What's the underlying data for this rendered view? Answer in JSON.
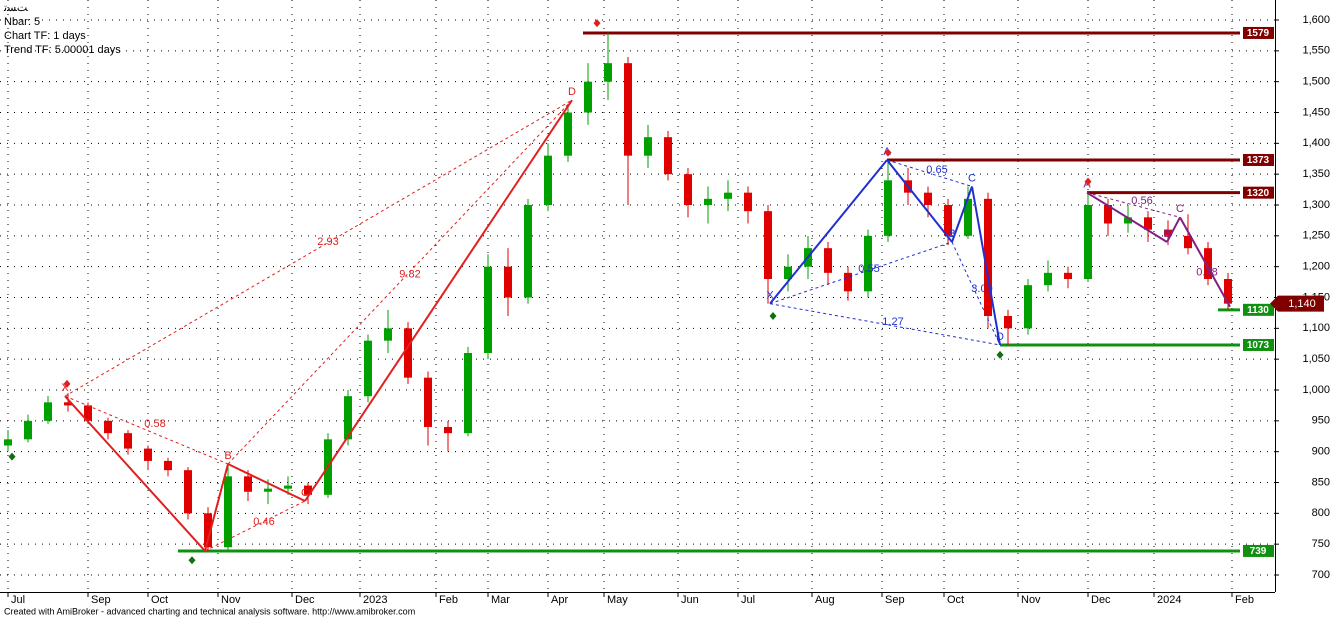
{
  "chart_data": {
    "type": "candlestick",
    "header": [
      "ﺖﺴﺗ",
      "Nbar: 5",
      "Chart TF: 1 days",
      "Trend TF: 5.00001 days"
    ],
    "footer": "Created with AmiBroker - advanced charting and technical analysis software. http://www.amibroker.com",
    "up_color": "#00a000",
    "down_color": "#e00000",
    "candles": [
      [
        910,
        935,
        900,
        920
      ],
      [
        920,
        960,
        915,
        950
      ],
      [
        950,
        990,
        945,
        980
      ],
      [
        980,
        995,
        965,
        975
      ],
      [
        975,
        980,
        945,
        950
      ],
      [
        950,
        955,
        920,
        930
      ],
      [
        930,
        935,
        895,
        905
      ],
      [
        905,
        910,
        870,
        885
      ],
      [
        885,
        890,
        860,
        870
      ],
      [
        870,
        875,
        790,
        800
      ],
      [
        800,
        810,
        739,
        745
      ],
      [
        745,
        880,
        740,
        860
      ],
      [
        860,
        870,
        820,
        835
      ],
      [
        835,
        855,
        815,
        840
      ],
      [
        840,
        860,
        830,
        845
      ],
      [
        845,
        850,
        815,
        830
      ],
      [
        830,
        930,
        825,
        920
      ],
      [
        920,
        1000,
        910,
        990
      ],
      [
        990,
        1090,
        980,
        1080
      ],
      [
        1080,
        1130,
        1060,
        1100
      ],
      [
        1100,
        1110,
        1010,
        1020
      ],
      [
        1020,
        1030,
        910,
        940
      ],
      [
        940,
        950,
        900,
        930
      ],
      [
        930,
        1070,
        925,
        1060
      ],
      [
        1060,
        1220,
        1050,
        1200
      ],
      [
        1200,
        1230,
        1120,
        1150
      ],
      [
        1150,
        1310,
        1140,
        1300
      ],
      [
        1300,
        1400,
        1290,
        1380
      ],
      [
        1380,
        1460,
        1370,
        1450
      ],
      [
        1450,
        1530,
        1430,
        1500
      ],
      [
        1500,
        1579,
        1470,
        1530
      ],
      [
        1530,
        1540,
        1300,
        1380
      ],
      [
        1380,
        1430,
        1360,
        1410
      ],
      [
        1410,
        1420,
        1340,
        1350
      ],
      [
        1350,
        1360,
        1280,
        1300
      ],
      [
        1300,
        1330,
        1270,
        1310
      ],
      [
        1310,
        1340,
        1290,
        1320
      ],
      [
        1320,
        1330,
        1270,
        1290
      ],
      [
        1290,
        1300,
        1140,
        1180
      ],
      [
        1180,
        1220,
        1160,
        1200
      ],
      [
        1200,
        1250,
        1180,
        1230
      ],
      [
        1230,
        1240,
        1170,
        1190
      ],
      [
        1190,
        1200,
        1145,
        1160
      ],
      [
        1160,
        1260,
        1150,
        1250
      ],
      [
        1250,
        1373,
        1240,
        1340
      ],
      [
        1340,
        1360,
        1300,
        1320
      ],
      [
        1320,
        1330,
        1280,
        1300
      ],
      [
        1300,
        1310,
        1235,
        1250
      ],
      [
        1250,
        1330,
        1245,
        1310
      ],
      [
        1310,
        1320,
        1100,
        1120
      ],
      [
        1120,
        1130,
        1073,
        1100
      ],
      [
        1100,
        1180,
        1090,
        1170
      ],
      [
        1170,
        1210,
        1160,
        1190
      ],
      [
        1190,
        1200,
        1165,
        1180
      ],
      [
        1180,
        1320,
        1175,
        1300
      ],
      [
        1300,
        1310,
        1250,
        1270
      ],
      [
        1270,
        1300,
        1255,
        1280
      ],
      [
        1280,
        1290,
        1240,
        1260
      ],
      [
        1260,
        1275,
        1235,
        1250
      ],
      [
        1250,
        1285,
        1220,
        1230
      ],
      [
        1230,
        1240,
        1170,
        1180
      ],
      [
        1180,
        1190,
        1130,
        1140
      ]
    ],
    "xlim": [
      -0.4,
      63.35
    ],
    "xticks": [
      {
        "value": 0,
        "label": "Jul"
      },
      {
        "value": 4,
        "label": "Sep"
      },
      {
        "value": 7,
        "label": "Oct"
      },
      {
        "value": 10.5,
        "label": "Nov"
      },
      {
        "value": 14.2,
        "label": "Dec"
      },
      {
        "value": 17.6,
        "label": "2023"
      },
      {
        "value": 21.4,
        "label": "Feb"
      },
      {
        "value": 24,
        "label": "Mar"
      },
      {
        "value": 27,
        "label": "Apr"
      },
      {
        "value": 29.8,
        "label": "May"
      },
      {
        "value": 33.5,
        "label": "Jun"
      },
      {
        "value": 36.5,
        "label": "Jul"
      },
      {
        "value": 40.2,
        "label": "Aug"
      },
      {
        "value": 43.7,
        "label": "Sep"
      },
      {
        "value": 46.8,
        "label": "Oct"
      },
      {
        "value": 50.5,
        "label": "Nov"
      },
      {
        "value": 54,
        "label": "Dec"
      },
      {
        "value": 57.3,
        "label": "2024"
      },
      {
        "value": 61.2,
        "label": "Feb"
      }
    ],
    "ylim": [
      700,
      1600
    ],
    "yticks": [
      700,
      750,
      800,
      850,
      900,
      950,
      {
        "value": 1000,
        "label": "1,000"
      },
      {
        "value": 1050,
        "label": "1,050"
      },
      {
        "value": 1100,
        "label": "1,100"
      },
      {
        "value": 1150,
        "label": "1,150"
      },
      {
        "value": 1200,
        "label": "1,200"
      },
      {
        "value": 1250,
        "label": "1,250"
      },
      {
        "value": 1300,
        "label": "1,300"
      },
      {
        "value": 1350,
        "label": "1,350"
      },
      {
        "value": 1400,
        "label": "1,400"
      },
      {
        "value": 1450,
        "label": "1,450"
      },
      {
        "value": 1500,
        "label": "1,500"
      },
      {
        "value": 1550,
        "label": "1,550"
      },
      {
        "value": 1600,
        "label": "1,600"
      }
    ],
    "grid": true,
    "patterns": [
      {
        "color": "#e02020",
        "points": [
          {
            "x": 2.85,
            "y": 990,
            "label": "X"
          },
          {
            "x": 9.85,
            "y": 739
          },
          {
            "x": 11,
            "y": 880,
            "label": "B"
          },
          {
            "x": 14.85,
            "y": 820,
            "label": "C"
          },
          {
            "x": 28.2,
            "y": 1470,
            "label": "D"
          }
        ],
        "ratios": [
          {
            "x": 16,
            "y": 1240,
            "label": "2.93"
          },
          {
            "x": 20.1,
            "y": 1187,
            "label": "9.82"
          },
          {
            "x": 7.35,
            "y": 945,
            "label": "0.58"
          },
          {
            "x": 12.8,
            "y": 786,
            "label": "0.46"
          }
        ]
      },
      {
        "color": "#2030d0",
        "points": [
          {
            "x": 38.1,
            "y": 1140,
            "label": "X"
          },
          {
            "x": 43.95,
            "y": 1373,
            "label": "A"
          },
          {
            "x": 47.2,
            "y": 1240,
            "label": "B"
          },
          {
            "x": 48.2,
            "y": 1330,
            "label": "C"
          },
          {
            "x": 49.6,
            "y": 1073,
            "label": "D"
          }
        ],
        "ratios": [
          {
            "x": 46.45,
            "y": 1357,
            "label": "0.65"
          },
          {
            "x": 43.05,
            "y": 1196,
            "label": "0.55"
          },
          {
            "x": 48.7,
            "y": 1164,
            "label": "3.00"
          },
          {
            "x": 44.25,
            "y": 1110,
            "label": "1.27"
          }
        ]
      },
      {
        "color": "#802080",
        "points": [
          {
            "x": 53.95,
            "y": 1320,
            "label": "A"
          },
          {
            "x": 57.95,
            "y": 1240,
            "label": "B"
          },
          {
            "x": 58.6,
            "y": 1280,
            "label": "C"
          },
          {
            "x": 61.1,
            "y": 1135
          }
        ],
        "ratios": [
          {
            "x": 56.7,
            "y": 1306,
            "label": "0.56"
          },
          {
            "x": 59.95,
            "y": 1190,
            "label": "0.78"
          }
        ]
      }
    ],
    "levels": [
      {
        "value": 1579,
        "start": 28.75,
        "color": "#800000"
      },
      {
        "value": 1373,
        "start": 43.95,
        "color": "#800000"
      },
      {
        "value": 1320,
        "start": 53.95,
        "color": "#800000"
      },
      {
        "value": 1130,
        "start": 60.5,
        "color": "#109010"
      },
      {
        "value": 1073,
        "start": 49.6,
        "color": "#109010"
      },
      {
        "value": 739,
        "start": 8.5,
        "color": "#109010"
      }
    ],
    "level_end": 61.6,
    "markers": [
      {
        "x": 2.95,
        "y": 1010,
        "color": "#e02020"
      },
      {
        "x": 29.45,
        "y": 1595,
        "color": "#e02020"
      },
      {
        "x": 44,
        "y": 1385,
        "color": "#e02020"
      },
      {
        "x": 54,
        "y": 1338,
        "color": "#e02020"
      },
      {
        "x": 0.2,
        "y": 892,
        "color": "#107010"
      },
      {
        "x": 9.2,
        "y": 724,
        "color": "#107010"
      },
      {
        "x": 38.25,
        "y": 1120,
        "color": "#107010"
      },
      {
        "x": 49.6,
        "y": 1057,
        "color": "#107010"
      }
    ],
    "last_price": {
      "value": 1140,
      "label": "1,140"
    }
  }
}
